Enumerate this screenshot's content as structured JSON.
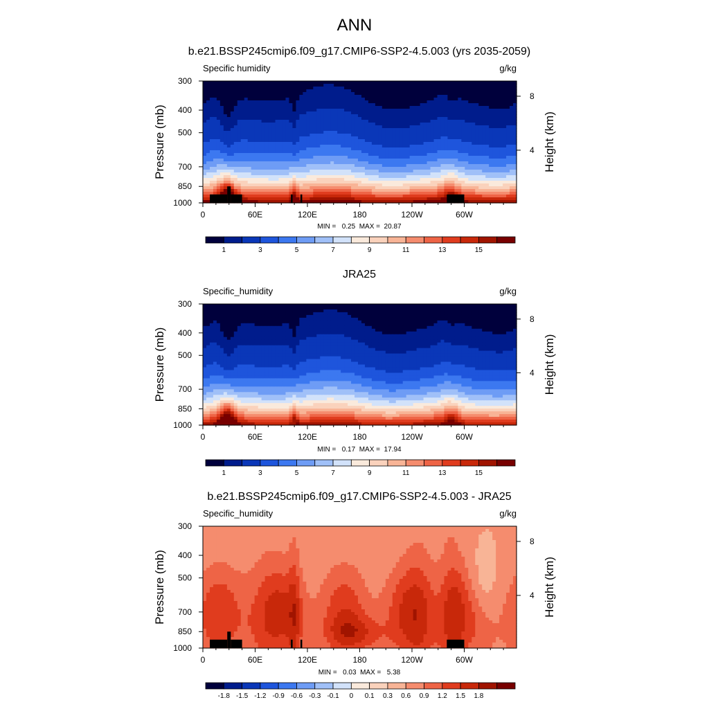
{
  "figure": {
    "title": "ANN",
    "colorbar_label": "g/kg"
  },
  "chart_data": [
    {
      "type": "heatmap",
      "id": "model",
      "title": "b.e21.BSSP245cmip6.f09_g17.CMIP6-SSP2-4.5.003 (yrs 2035-2059)",
      "variable": "Specific humidity",
      "units": "g/kg",
      "ylabel": "Pressure (mb)",
      "ylabel_right": "Height (km)",
      "x_ticks": [
        "0",
        "60E",
        "120E",
        "180",
        "120W",
        "60W"
      ],
      "x_tick_values": [
        0,
        60,
        120,
        180,
        240,
        300
      ],
      "xlim": [
        0,
        360
      ],
      "y_ticks": [
        "300",
        "400",
        "500",
        "700",
        "850",
        "1000"
      ],
      "y_tick_values": [
        300,
        400,
        500,
        700,
        850,
        1000
      ],
      "ylim": [
        1000,
        300
      ],
      "right_ticks": [
        "8",
        "4"
      ],
      "right_tick_values": [
        8,
        4
      ],
      "stats": "MIN =   0.25  MAX =  20.87",
      "min": 0.25,
      "max": 20.87,
      "levels": [
        0.5,
        1,
        2,
        3,
        4,
        5,
        6,
        7,
        8,
        9,
        10,
        11,
        12,
        13,
        14,
        15,
        16
      ],
      "colorbar_labels": [
        "1",
        "3",
        "5",
        "7",
        "9",
        "11",
        "13",
        "15"
      ],
      "terrain_mask": true
    },
    {
      "type": "heatmap",
      "id": "obs",
      "title": "JRA25",
      "variable": "Specific_humidity",
      "units": "g/kg",
      "ylabel": "Pressure (mb)",
      "ylabel_right": "Height (km)",
      "x_ticks": [
        "0",
        "60E",
        "120E",
        "180",
        "120W",
        "60W"
      ],
      "x_tick_values": [
        0,
        60,
        120,
        180,
        240,
        300
      ],
      "xlim": [
        0,
        360
      ],
      "y_ticks": [
        "300",
        "400",
        "500",
        "700",
        "850",
        "1000"
      ],
      "y_tick_values": [
        300,
        400,
        500,
        700,
        850,
        1000
      ],
      "ylim": [
        1000,
        300
      ],
      "right_ticks": [
        "8",
        "4"
      ],
      "right_tick_values": [
        8,
        4
      ],
      "stats": "MIN =   0.17  MAX =  17.94",
      "min": 0.17,
      "max": 17.94,
      "levels": [
        0.5,
        1,
        2,
        3,
        4,
        5,
        6,
        7,
        8,
        9,
        10,
        11,
        12,
        13,
        14,
        15,
        16
      ],
      "colorbar_labels": [
        "1",
        "3",
        "5",
        "7",
        "9",
        "11",
        "13",
        "15"
      ],
      "terrain_mask": false
    },
    {
      "type": "heatmap",
      "id": "diff",
      "title": "b.e21.BSSP245cmip6.f09_g17.CMIP6-SSP2-4.5.003 - JRA25",
      "variable": "Specific_humidity",
      "units": "g/kg",
      "ylabel": "Pressure (mb)",
      "ylabel_right": "Height (km)",
      "x_ticks": [
        "0",
        "60E",
        "120E",
        "180",
        "120W",
        "60W"
      ],
      "x_tick_values": [
        0,
        60,
        120,
        180,
        240,
        300
      ],
      "xlim": [
        0,
        360
      ],
      "y_ticks": [
        "300",
        "400",
        "500",
        "700",
        "850",
        "1000"
      ],
      "y_tick_values": [
        300,
        400,
        500,
        700,
        850,
        1000
      ],
      "ylim": [
        1000,
        300
      ],
      "right_ticks": [
        "8",
        "4"
      ],
      "right_tick_values": [
        8,
        4
      ],
      "stats": "MIN =   0.03  MAX =   5.38",
      "min": 0.03,
      "max": 5.38,
      "levels": [
        -2.1,
        -1.8,
        -1.5,
        -1.2,
        -0.9,
        -0.6,
        -0.3,
        -0.1,
        0,
        0.1,
        0.3,
        0.6,
        0.9,
        1.2,
        1.5,
        1.8,
        2.1
      ],
      "colorbar_labels": [
        "-1.8",
        "-1.5",
        "-1.2",
        "-0.9",
        "-0.6",
        "-0.3",
        "-0.1",
        "0",
        "0.1",
        "0.3",
        "0.6",
        "0.9",
        "1.2",
        "1.5",
        "1.8"
      ],
      "terrain_mask": true
    }
  ],
  "colormap": [
    "#00003c",
    "#001c8c",
    "#0a37b8",
    "#1e55dc",
    "#3c78f0",
    "#6e9cf5",
    "#a0c0f8",
    "#d2e2fa",
    "#faeadc",
    "#fad2bc",
    "#f8b496",
    "#f58c6e",
    "#ee6446",
    "#e03c1e",
    "#c8280a",
    "#a01400",
    "#780000"
  ]
}
